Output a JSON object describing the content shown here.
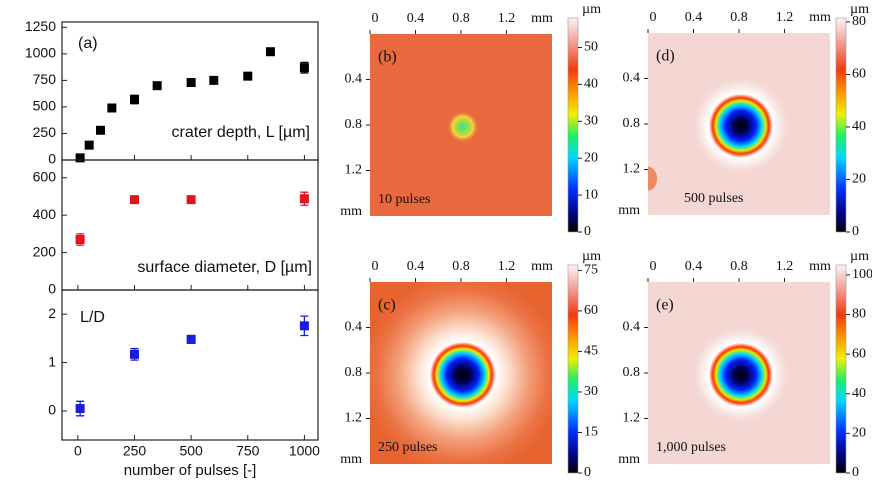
{
  "chart_data": [
    {
      "type": "scatter",
      "panel_label": "(a)",
      "x_label": "number of pulses [-]",
      "xlim": [
        -70,
        1060
      ],
      "xticks": [
        0,
        250,
        500,
        750,
        1000
      ],
      "panels": [
        {
          "ylim": [
            0,
            1300
          ],
          "yticks": [
            0,
            250,
            500,
            750,
            1000,
            1250
          ],
          "series": [
            {
              "name": "crater depth, L [µm]",
              "color": "#000000",
              "x": [
                10,
                50,
                100,
                150,
                250,
                350,
                500,
                600,
                750,
                850,
                1000
              ],
              "values": [
                20,
                140,
                280,
                490,
                570,
                700,
                730,
                750,
                790,
                1020,
                870
              ],
              "errors": [
                null,
                null,
                null,
                null,
                40,
                null,
                30,
                null,
                null,
                null,
                50
              ]
            }
          ]
        },
        {
          "ylim": [
            0,
            695
          ],
          "yticks": [
            0,
            200,
            400,
            600
          ],
          "series": [
            {
              "name": "surface diameter, D [µm]",
              "color": "#e0141e",
              "x": [
                10,
                250,
                500,
                1000
              ],
              "values": [
                270,
                483,
                483,
                488
              ],
              "errors": [
                30,
                null,
                null,
                35
              ]
            }
          ]
        },
        {
          "ylim": [
            -0.6,
            2.5
          ],
          "yticks": [
            0,
            1,
            2
          ],
          "series": [
            {
              "name": "L/D",
              "color": "#1c1cdc",
              "x": [
                10,
                250,
                500,
                1000
              ],
              "values": [
                0.05,
                1.17,
                1.48,
                1.76
              ],
              "errors": [
                0.15,
                0.12,
                0.08,
                0.2
              ]
            }
          ]
        }
      ]
    },
    {
      "type": "heatmap",
      "panel_label": "(b)",
      "annotation": "10 pulses",
      "xlim": [
        0,
        1.6
      ],
      "ylim": [
        0,
        1.6
      ],
      "xticks": [
        0,
        0.4,
        0.8,
        1.2
      ],
      "yticks": [
        0.4,
        0.8,
        1.2
      ],
      "x_unit": "mm",
      "y_unit": "mm",
      "colorbar_label": "µm",
      "zlim": [
        0,
        58
      ],
      "zticks": [
        0,
        10,
        20,
        30,
        40,
        50
      ]
    },
    {
      "type": "heatmap",
      "panel_label": "(c)",
      "annotation": "250 pulses",
      "xlim": [
        0,
        1.6
      ],
      "ylim": [
        0,
        1.6
      ],
      "xticks": [
        0,
        0.4,
        0.8,
        1.2
      ],
      "yticks": [
        0.4,
        0.8,
        1.2
      ],
      "x_unit": "mm",
      "y_unit": "mm",
      "colorbar_label": "µm",
      "zlim": [
        0,
        77
      ],
      "zticks": [
        0,
        15,
        30,
        45,
        60,
        75
      ]
    },
    {
      "type": "heatmap",
      "panel_label": "(d)",
      "annotation": "500 pulses",
      "xlim": [
        0,
        1.6
      ],
      "ylim": [
        0,
        1.6
      ],
      "xticks": [
        0,
        0.4,
        0.8,
        1.2
      ],
      "yticks": [
        0.4,
        0.8,
        1.2
      ],
      "x_unit": "mm",
      "y_unit": "mm",
      "colorbar_label": "µm",
      "zlim": [
        0,
        81.5
      ],
      "zticks": [
        0,
        20,
        40,
        60,
        80
      ]
    },
    {
      "type": "heatmap",
      "panel_label": "(e)",
      "annotation": "1,000 pulses",
      "xlim": [
        0,
        1.6
      ],
      "ylim": [
        0,
        1.6
      ],
      "xticks": [
        0,
        0.4,
        0.8,
        1.2
      ],
      "yticks": [
        0.4,
        0.8,
        1.2
      ],
      "x_unit": "mm",
      "y_unit": "mm",
      "colorbar_label": "µm",
      "zlim": [
        0,
        105
      ],
      "zticks": [
        0,
        20,
        40,
        60,
        80,
        100
      ]
    }
  ]
}
